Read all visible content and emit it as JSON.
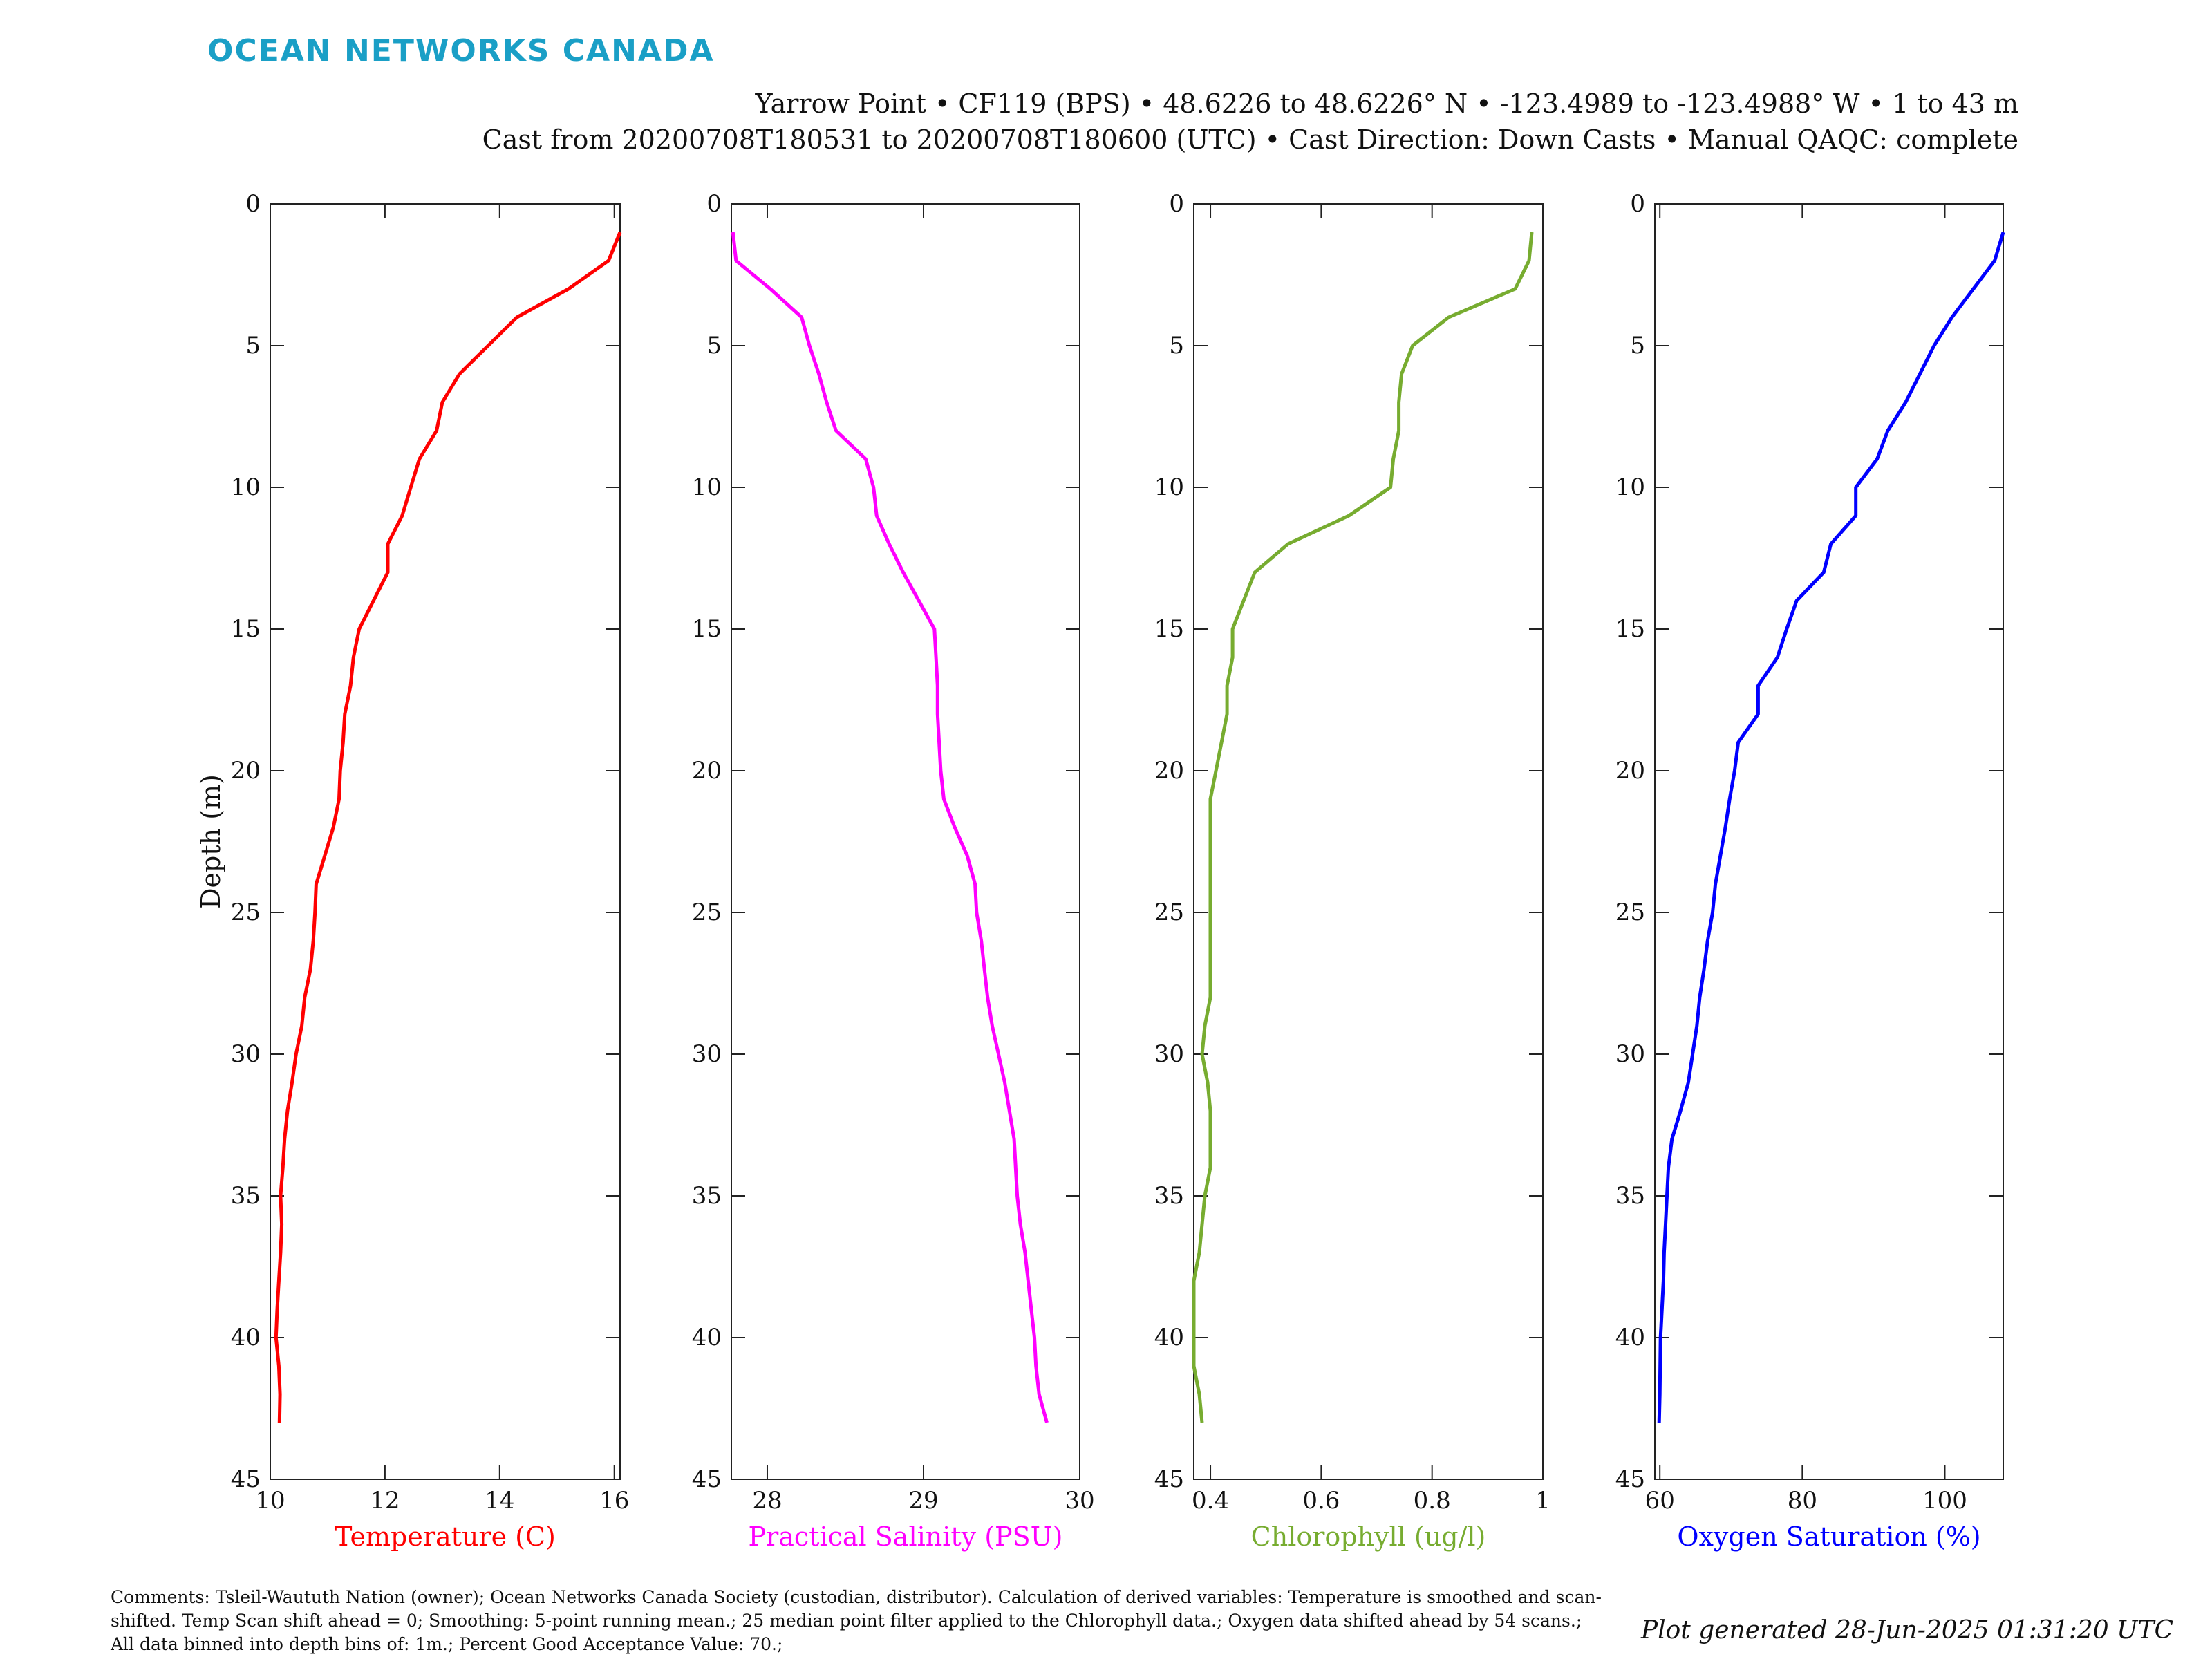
{
  "header": {
    "logo_text": "OCEAN NETWORKS CANADA",
    "line1": "Yarrow Point • CF119 (BPS) • 48.6226 to 48.6226° N • -123.4989 to -123.4988° W • 1 to 43 m",
    "line2": "Cast from 20200708T180531 to 20200708T180600 (UTC) • Cast Direction: Down Casts • Manual QAQC: complete"
  },
  "footer": {
    "comments": "Comments: Tsleil-Waututh Nation (owner); Ocean Networks Canada Society (custodian, distributor). Calculation of derived variables: Temperature is smoothed and scan-shifted. Temp Scan shift ahead = 0; Smoothing: 5-point running mean.; 25 median point filter applied to the Chlorophyll data.; Oxygen data shifted ahead by 54 scans.; All data binned into depth bins of: 1m.; Percent Good Acceptance Value: 70.;",
    "generated": "Plot generated 28-Jun-2025 01:31:20 UTC"
  },
  "chart_data": [
    {
      "type": "line",
      "xlabel": "Temperature (C)",
      "ylabel": "Depth (m)",
      "color": "#ff0000",
      "xlim": [
        10,
        16.1
      ],
      "ylim": [
        45,
        0
      ],
      "xticks": [
        10,
        12,
        14,
        16
      ],
      "xtick_labels": [
        "10",
        "12",
        "14",
        "16"
      ],
      "yticks": [
        0,
        5,
        10,
        15,
        20,
        25,
        30,
        35,
        40,
        45
      ],
      "depth": [
        1,
        2,
        3,
        4,
        5,
        6,
        7,
        8,
        9,
        10,
        11,
        12,
        13,
        14,
        15,
        16,
        17,
        18,
        19,
        20,
        21,
        22,
        23,
        24,
        25,
        26,
        27,
        28,
        29,
        30,
        31,
        32,
        33,
        34,
        35,
        36,
        37,
        38,
        39,
        40,
        41,
        42,
        43
      ],
      "values": [
        16.1,
        15.9,
        15.2,
        14.3,
        13.8,
        13.3,
        13.0,
        12.9,
        12.6,
        12.45,
        12.3,
        12.05,
        12.05,
        11.8,
        11.55,
        11.45,
        11.4,
        11.3,
        11.27,
        11.22,
        11.2,
        11.1,
        10.95,
        10.8,
        10.78,
        10.75,
        10.7,
        10.6,
        10.55,
        10.45,
        10.38,
        10.3,
        10.25,
        10.22,
        10.18,
        10.2,
        10.18,
        10.15,
        10.12,
        10.1,
        10.15,
        10.17,
        10.16
      ]
    },
    {
      "type": "line",
      "xlabel": "Practical Salinity (PSU)",
      "color": "#ff00ff",
      "xlim": [
        27.77,
        30
      ],
      "ylim": [
        45,
        0
      ],
      "xticks": [
        28,
        29,
        30
      ],
      "xtick_labels": [
        "28",
        "29",
        "30"
      ],
      "yticks": [
        0,
        5,
        10,
        15,
        20,
        25,
        30,
        35,
        40,
        45
      ],
      "depth": [
        1,
        2,
        3,
        4,
        5,
        6,
        7,
        8,
        9,
        10,
        11,
        12,
        13,
        14,
        15,
        16,
        17,
        18,
        19,
        20,
        21,
        22,
        23,
        24,
        25,
        26,
        27,
        28,
        29,
        30,
        31,
        32,
        33,
        34,
        35,
        36,
        37,
        38,
        39,
        40,
        41,
        42,
        43
      ],
      "values": [
        27.78,
        27.8,
        28.02,
        28.22,
        28.27,
        28.33,
        28.38,
        28.44,
        28.63,
        28.68,
        28.7,
        28.78,
        28.87,
        28.97,
        29.07,
        29.08,
        29.09,
        29.09,
        29.1,
        29.11,
        29.13,
        29.2,
        29.28,
        29.33,
        29.34,
        29.37,
        29.39,
        29.41,
        29.44,
        29.48,
        29.52,
        29.55,
        29.58,
        29.59,
        29.6,
        29.62,
        29.65,
        29.67,
        29.69,
        29.71,
        29.72,
        29.74,
        29.79
      ]
    },
    {
      "type": "line",
      "xlabel": "Chlorophyll (ug/l)",
      "color": "#77ac30",
      "xlim": [
        0.37,
        1.0
      ],
      "ylim": [
        45,
        0
      ],
      "xticks": [
        0.4,
        0.6,
        0.8,
        1.0
      ],
      "xtick_labels": [
        "0.4",
        "0.6",
        "0.8",
        "1"
      ],
      "yticks": [
        0,
        5,
        10,
        15,
        20,
        25,
        30,
        35,
        40,
        45
      ],
      "depth": [
        1,
        2,
        3,
        4,
        5,
        6,
        7,
        8,
        9,
        10,
        11,
        12,
        13,
        14,
        15,
        16,
        17,
        18,
        19,
        20,
        21,
        22,
        23,
        24,
        25,
        26,
        27,
        28,
        29,
        30,
        31,
        32,
        33,
        34,
        35,
        36,
        37,
        38,
        39,
        40,
        41,
        42,
        43
      ],
      "values": [
        0.98,
        0.975,
        0.95,
        0.83,
        0.765,
        0.745,
        0.74,
        0.74,
        0.73,
        0.725,
        0.65,
        0.54,
        0.48,
        0.46,
        0.44,
        0.44,
        0.43,
        0.43,
        0.42,
        0.41,
        0.4,
        0.4,
        0.4,
        0.4,
        0.4,
        0.4,
        0.4,
        0.4,
        0.39,
        0.385,
        0.395,
        0.4,
        0.4,
        0.4,
        0.39,
        0.385,
        0.38,
        0.37,
        0.37,
        0.37,
        0.37,
        0.38,
        0.385
      ]
    },
    {
      "type": "line",
      "xlabel": "Oxygen Saturation (%)",
      "color": "#0000ff",
      "xlim": [
        59.3,
        108.2
      ],
      "ylim": [
        45,
        0
      ],
      "xticks": [
        60,
        80,
        100
      ],
      "xtick_labels": [
        "60",
        "80",
        "100"
      ],
      "yticks": [
        0,
        5,
        10,
        15,
        20,
        25,
        30,
        35,
        40,
        45
      ],
      "depth": [
        1,
        2,
        3,
        4,
        5,
        6,
        7,
        8,
        9,
        10,
        11,
        12,
        13,
        14,
        15,
        16,
        17,
        18,
        19,
        20,
        21,
        22,
        23,
        24,
        25,
        26,
        27,
        28,
        29,
        30,
        31,
        32,
        33,
        34,
        35,
        36,
        37,
        38,
        39,
        40,
        41,
        42,
        43
      ],
      "values": [
        108.2,
        107,
        104,
        101,
        98.5,
        96.5,
        94.5,
        92,
        90.5,
        87.5,
        87.5,
        84,
        83,
        79.2,
        77.8,
        76.5,
        73.8,
        73.8,
        71,
        70.5,
        69.8,
        69.2,
        68.5,
        67.8,
        67.4,
        66.7,
        66.2,
        65.6,
        65.2,
        64.6,
        64,
        62.9,
        61.7,
        61.2,
        61,
        60.8,
        60.6,
        60.5,
        60.3,
        60.1,
        60.05,
        60,
        59.9
      ]
    }
  ]
}
